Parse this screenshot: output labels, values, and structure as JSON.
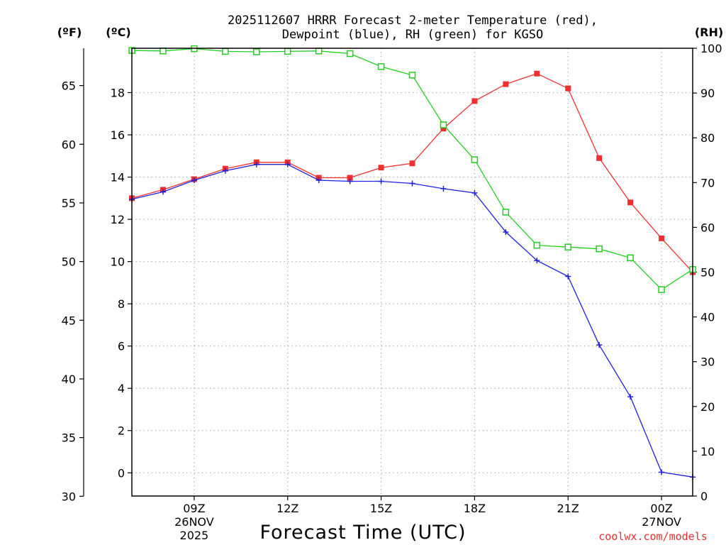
{
  "chart_data": {
    "type": "line",
    "title": "2025112607 HRRR Forecast 2-meter Temperature (red),",
    "subtitle": "Dewpoint (blue), RH (green) for KGSO",
    "xlabel": "Forecast Time (UTC)",
    "credit": "coolwx.com/models",
    "units": {
      "f": "(ºF)",
      "c": "(ºC)",
      "rh": "(RH)"
    },
    "x_hours": [
      7,
      8,
      9,
      10,
      11,
      12,
      13,
      14,
      15,
      16,
      17,
      18,
      19,
      20,
      21,
      22,
      23,
      24,
      25
    ],
    "xlim": [
      7,
      25
    ],
    "x_ticks": [
      {
        "h": 9,
        "label": "09Z",
        "sub1": "26NOV",
        "sub2": "2025"
      },
      {
        "h": 12,
        "label": "12Z",
        "sub1": "",
        "sub2": ""
      },
      {
        "h": 15,
        "label": "15Z",
        "sub1": "",
        "sub2": ""
      },
      {
        "h": 18,
        "label": "18Z",
        "sub1": "",
        "sub2": ""
      },
      {
        "h": 21,
        "label": "21Z",
        "sub1": "",
        "sub2": ""
      },
      {
        "h": 24,
        "label": "00Z",
        "sub1": "27NOV",
        "sub2": ""
      }
    ],
    "c_axis": {
      "lim": [
        -1.1,
        20.1
      ],
      "ticks": [
        "0",
        "2",
        "4",
        "6",
        "8",
        "10",
        "12",
        "14",
        "16",
        "18"
      ]
    },
    "f_axis": {
      "ticks": [
        "30",
        "35",
        "40",
        "45",
        "50",
        "55",
        "60",
        "65"
      ]
    },
    "rh_axis": {
      "lim": [
        0,
        100
      ],
      "ticks": [
        "0",
        "10",
        "20",
        "30",
        "40",
        "50",
        "60",
        "70",
        "80",
        "90",
        "100"
      ]
    },
    "series": [
      {
        "name": "2-meter Temperature",
        "axis": "c",
        "color": "#f03030",
        "marker": "filled-square",
        "values": [
          13.0,
          13.4,
          13.9,
          14.4,
          14.7,
          14.7,
          13.97,
          13.97,
          14.45,
          14.65,
          16.3,
          17.6,
          18.4,
          18.9,
          18.2,
          14.9,
          12.8,
          11.1,
          9.5
        ]
      },
      {
        "name": "Dewpoint",
        "axis": "c",
        "color": "#2020e0",
        "marker": "plus",
        "values": [
          12.95,
          13.3,
          13.85,
          14.3,
          14.6,
          14.6,
          13.85,
          13.8,
          13.8,
          13.7,
          13.45,
          13.25,
          11.4,
          10.05,
          9.3,
          6.05,
          3.6,
          0.03,
          -0.2
        ]
      },
      {
        "name": "RH",
        "axis": "rh",
        "color": "#20d020",
        "marker": "open-square",
        "values": [
          99.5,
          99.4,
          99.9,
          99.3,
          99.2,
          99.3,
          99.4,
          98.8,
          95.9,
          94.0,
          82.9,
          75.1,
          63.4,
          56.0,
          55.6,
          55.2,
          53.2,
          46.1,
          50.6
        ]
      }
    ]
  }
}
